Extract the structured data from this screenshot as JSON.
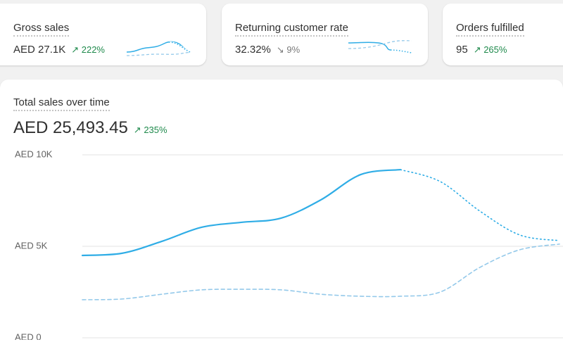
{
  "cards": [
    {
      "title": "Gross sales",
      "value": "AED 27.1K",
      "change": "222%"
    },
    {
      "title": "Returning customer rate",
      "value": "32.32%",
      "change": "9%"
    },
    {
      "title": "Orders fulfilled",
      "value": "95",
      "change": "265%"
    }
  ],
  "chart_data": {
    "type": "line",
    "title": "Total sales over time",
    "total": "AED 25,493.45",
    "change": "235%",
    "categories": [
      null,
      null,
      null,
      null,
      null,
      null,
      null,
      null,
      null,
      null,
      null,
      null,
      null
    ],
    "series": [
      {
        "color": "#2fade6",
        "style": "solid",
        "values": [
          4500,
          4620,
          5270,
          6040,
          6310,
          6540,
          7540,
          8920,
          9190,
          null,
          null,
          null,
          null
        ]
      },
      {
        "color": "#2fade6",
        "style": "dotted",
        "values": [
          null,
          null,
          null,
          null,
          null,
          null,
          null,
          null,
          9190,
          8540,
          6920,
          5620,
          5310
        ]
      },
      {
        "color": "#94c9ea",
        "style": "dashed",
        "values": [
          2080,
          2120,
          2380,
          2620,
          2650,
          2620,
          2380,
          2270,
          2270,
          2500,
          3850,
          4810,
          5120
        ]
      }
    ],
    "ylim": [
      0,
      10000
    ],
    "yticks": [
      {
        "value": 0,
        "label": "AED 0"
      },
      {
        "value": 5000,
        "label": "AED 5K"
      },
      {
        "value": 10000,
        "label": "AED 10K"
      }
    ],
    "grid": true
  }
}
